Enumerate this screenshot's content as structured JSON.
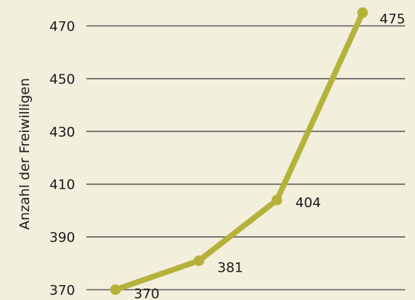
{
  "colors": {
    "background": "#f3efdd",
    "line": "#b5b23b",
    "grid": "#555555",
    "text": "#1a1a1a"
  },
  "chart_data": {
    "type": "line",
    "title": "",
    "xlabel": "",
    "ylabel": "Anzahl der Freiwilligen",
    "ylim": [
      370,
      475
    ],
    "yticks": [
      370,
      390,
      410,
      430,
      450,
      470
    ],
    "grid": true,
    "legend": "none",
    "series": [
      {
        "values": [
          370,
          381,
          404,
          475
        ]
      }
    ],
    "data_labels": [
      "370",
      "381",
      "404",
      "475"
    ]
  }
}
